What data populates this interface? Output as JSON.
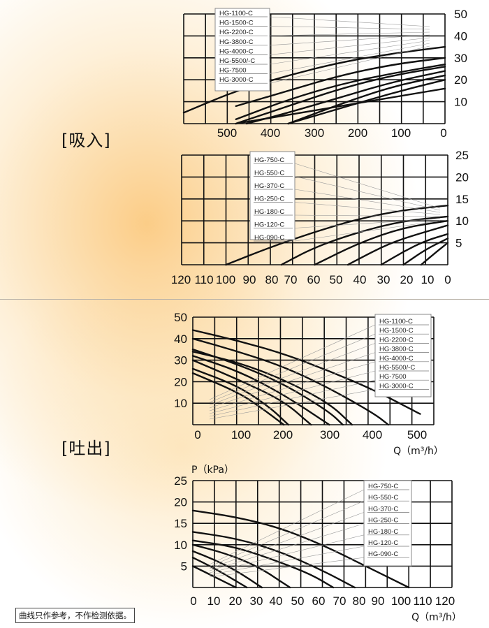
{
  "labels": {
    "suction": "[吸入]",
    "discharge": "[吐出]"
  },
  "note": "曲线只作参考，不作检测依据。",
  "charts": {
    "suction_large": {
      "type": "line",
      "x_ticks": [
        "500",
        "400",
        "300",
        "200",
        "100",
        "0"
      ],
      "y_ticks": [
        "10",
        "20",
        "30",
        "40",
        "50"
      ],
      "legend": [
        "HG-1100-C",
        "HG-1500-C",
        "HG-2200-C",
        "HG-3800-C",
        "HG-4000-C",
        "HG-5500/-C",
        "HG-7500",
        "HG-3000-C"
      ]
    },
    "suction_small": {
      "type": "line",
      "x_ticks": [
        "120",
        "110",
        "100",
        "90",
        "80",
        "70",
        "60",
        "50",
        "40",
        "30",
        "20",
        "10",
        "0"
      ],
      "y_ticks": [
        "5",
        "10",
        "15",
        "20",
        "25"
      ],
      "legend": [
        "HG-750-C",
        "HG-550-C",
        "HG-370-C",
        "HG-250-C",
        "HG-180-C",
        "HG-120-C",
        "HG-090-C"
      ]
    },
    "discharge_large": {
      "type": "line",
      "x_ticks": [
        "0",
        "100",
        "200",
        "300",
        "400",
        "500"
      ],
      "y_ticks": [
        "10",
        "20",
        "30",
        "40",
        "50"
      ],
      "xlabel": "Q（m³/h）",
      "legend": [
        "HG-1100-C",
        "HG-1500-C",
        "HG-2200-C",
        "HG-3800-C",
        "HG-4000-C",
        "HG-5500/-C",
        "HG-7500",
        "HG-3000-C"
      ]
    },
    "discharge_small": {
      "type": "line",
      "x_ticks": [
        "0",
        "10",
        "20",
        "30",
        "40",
        "50",
        "60",
        "70",
        "80",
        "90",
        "100",
        "110",
        "120"
      ],
      "y_ticks": [
        "5",
        "10",
        "15",
        "20",
        "25"
      ],
      "xlabel": "Q（m³/h）",
      "ylabel": "P（kPa）",
      "legend": [
        "HG-750-C",
        "HG-550-C",
        "HG-370-C",
        "HG-250-C",
        "HG-180-C",
        "HG-120-C",
        "HG-090-C"
      ]
    }
  },
  "chart_data": [
    {
      "type": "line",
      "title": "",
      "xlabel": "",
      "ylabel": "",
      "x_reversed": true,
      "xlim": [
        0,
        500
      ],
      "ylim": [
        0,
        50
      ],
      "grid": true,
      "series": [
        {
          "name": "HG-1100-C",
          "x": [
            0,
            100,
            200,
            300,
            400
          ],
          "y": [
            16,
            12,
            8,
            4,
            0
          ]
        },
        {
          "name": "HG-1500-C",
          "x": [
            0,
            100,
            200,
            300
          ],
          "y": [
            20,
            14,
            7,
            0
          ]
        },
        {
          "name": "HG-2200-C",
          "x": [
            0,
            100,
            200,
            300
          ],
          "y": [
            22,
            17,
            9,
            0
          ]
        },
        {
          "name": "HG-3800-C",
          "x": [
            0,
            100,
            200,
            300,
            380
          ],
          "y": [
            24,
            19,
            12,
            5,
            0
          ]
        },
        {
          "name": "HG-4000-C",
          "x": [
            0,
            100,
            200,
            300,
            400
          ],
          "y": [
            26,
            22,
            16,
            8,
            0
          ]
        },
        {
          "name": "HG-5500/-C",
          "x": [
            0,
            100,
            200,
            300,
            400
          ],
          "y": [
            27,
            23,
            18,
            11,
            2
          ]
        },
        {
          "name": "HG-7500",
          "x": [
            0,
            100,
            200,
            300,
            400
          ],
          "y": [
            30,
            27,
            22,
            15,
            8
          ]
        },
        {
          "name": "HG-3000-C",
          "x": [
            0,
            100,
            200,
            300,
            400,
            500
          ],
          "y": [
            35,
            32,
            28,
            22,
            15,
            5
          ]
        }
      ]
    },
    {
      "type": "line",
      "title": "",
      "xlabel": "",
      "ylabel": "",
      "x_reversed": true,
      "xlim": [
        0,
        120
      ],
      "ylim": [
        0,
        25
      ],
      "grid": true,
      "series": [
        {
          "name": "HG-750-C",
          "x": [
            0,
            20,
            40,
            60,
            80,
            100
          ],
          "y": [
            13.5,
            12.5,
            10.5,
            7.5,
            4,
            0
          ]
        },
        {
          "name": "HG-550-C",
          "x": [
            0,
            20,
            40,
            60,
            75
          ],
          "y": [
            11,
            10,
            7.5,
            4,
            0
          ]
        },
        {
          "name": "HG-370-C",
          "x": [
            0,
            20,
            40,
            60
          ],
          "y": [
            10,
            8.5,
            5,
            0
          ]
        },
        {
          "name": "HG-250-C",
          "x": [
            0,
            20,
            30,
            45
          ],
          "y": [
            9,
            6,
            4,
            0
          ]
        },
        {
          "name": "HG-180-C",
          "x": [
            0,
            10,
            20,
            30
          ],
          "y": [
            7,
            5.5,
            3,
            0
          ]
        },
        {
          "name": "HG-120-C",
          "x": [
            0,
            10,
            20
          ],
          "y": [
            6,
            3.5,
            0
          ]
        },
        {
          "name": "HG-090-C",
          "x": [
            0,
            5,
            12
          ],
          "y": [
            5,
            3,
            0
          ]
        }
      ]
    },
    {
      "type": "line",
      "title": "",
      "xlabel": "Q（m³/h）",
      "ylabel": "",
      "xlim": [
        0,
        530
      ],
      "ylim": [
        0,
        50
      ],
      "grid": true,
      "series": [
        {
          "name": "HG-1100-C",
          "x": [
            0,
            100,
            150,
            200
          ],
          "y": [
            24,
            15,
            8,
            0
          ]
        },
        {
          "name": "HG-1500-C",
          "x": [
            0,
            100,
            170,
            210
          ],
          "y": [
            26,
            18,
            8,
            0
          ]
        },
        {
          "name": "HG-2200-C",
          "x": [
            0,
            100,
            200,
            260
          ],
          "y": [
            30,
            21,
            11,
            0
          ]
        },
        {
          "name": "HG-3800-C",
          "x": [
            0,
            100,
            200,
            300
          ],
          "y": [
            32,
            25,
            14,
            0
          ]
        },
        {
          "name": "HG-4000-C",
          "x": [
            0,
            100,
            200,
            300,
            330
          ],
          "y": [
            35,
            28,
            19,
            6,
            0
          ]
        },
        {
          "name": "HG-5500/-C",
          "x": [
            0,
            100,
            200,
            300,
            350
          ],
          "y": [
            34,
            29,
            21,
            10,
            0
          ]
        },
        {
          "name": "HG-7500",
          "x": [
            0,
            100,
            200,
            300,
            400,
            430
          ],
          "y": [
            40,
            34,
            27,
            17,
            5,
            0
          ]
        },
        {
          "name": "HG-3000-C",
          "x": [
            0,
            100,
            200,
            300,
            400,
            500
          ],
          "y": [
            44,
            39,
            33,
            25,
            16,
            5
          ]
        }
      ]
    },
    {
      "type": "line",
      "title": "",
      "xlabel": "Q（m³/h）",
      "ylabel": "P（kPa）",
      "xlim": [
        0,
        120
      ],
      "ylim": [
        0,
        25
      ],
      "grid": true,
      "series": [
        {
          "name": "HG-750-C",
          "x": [
            0,
            20,
            40,
            60,
            80,
            100
          ],
          "y": [
            18,
            16.5,
            14,
            10,
            5,
            0
          ]
        },
        {
          "name": "HG-550-C",
          "x": [
            0,
            20,
            40,
            60,
            75
          ],
          "y": [
            13,
            11.5,
            8.5,
            4,
            0
          ]
        },
        {
          "name": "HG-370-C",
          "x": [
            0,
            20,
            40,
            55,
            65
          ],
          "y": [
            11,
            9.5,
            6,
            3,
            0
          ]
        },
        {
          "name": "HG-250-C",
          "x": [
            0,
            15,
            30,
            45
          ],
          "y": [
            10,
            8,
            5,
            0
          ]
        },
        {
          "name": "HG-180-C",
          "x": [
            0,
            10,
            20,
            32
          ],
          "y": [
            8.5,
            6.5,
            4,
            0
          ]
        },
        {
          "name": "HG-120-C",
          "x": [
            0,
            10,
            20,
            25
          ],
          "y": [
            7,
            4.5,
            1.5,
            0
          ]
        },
        {
          "name": "HG-090-C",
          "x": [
            0,
            10,
            20
          ],
          "y": [
            5,
            2.5,
            0
          ]
        }
      ]
    }
  ]
}
